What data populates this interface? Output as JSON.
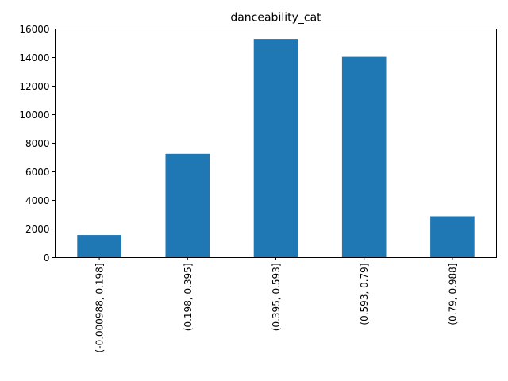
{
  "chart_data": {
    "type": "bar",
    "title": "danceability_cat",
    "xlabel": "",
    "ylabel": "",
    "categories": [
      "(-0.000988, 0.198]",
      "(0.198, 0.395]",
      "(0.395, 0.593]",
      "(0.593, 0.79]",
      "(0.79, 0.988]"
    ],
    "values": [
      1580,
      7260,
      15300,
      14050,
      2890
    ],
    "ylim": [
      0,
      16000
    ],
    "yticks": [
      0,
      2000,
      4000,
      6000,
      8000,
      10000,
      12000,
      14000,
      16000
    ],
    "grid": false,
    "legend": "none",
    "bar_color": "#1f77b4",
    "axis_color": "#000000"
  }
}
